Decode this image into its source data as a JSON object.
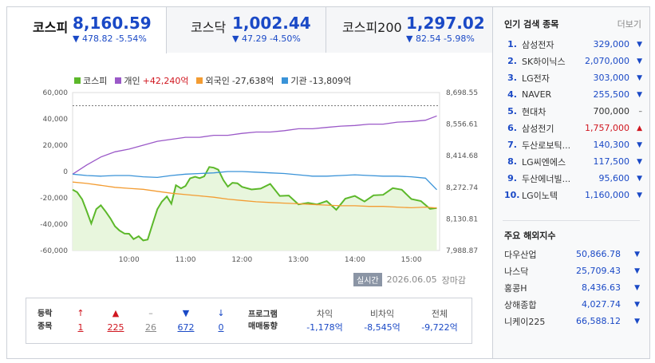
{
  "tabs": [
    {
      "name": "코스피",
      "value": "8,160.59",
      "change": "▼ 478.82 -5.54%"
    },
    {
      "name": "코스닥",
      "value": "1,002.44",
      "change": "▼ 47.29 -4.50%"
    },
    {
      "name": "코스피200",
      "value": "1,297.02",
      "change": "▼ 82.54 -5.98%"
    }
  ],
  "legend": [
    {
      "name": "코스피",
      "value": "",
      "color": "#5cb82a"
    },
    {
      "name": "개인",
      "value": "+42,240억",
      "color": "#9b59c8"
    },
    {
      "name": "외국인",
      "value": "-27,638억",
      "color": "#f39c32"
    },
    {
      "name": "기관",
      "value": "-13,809억",
      "color": "#3a93d8"
    }
  ],
  "info": {
    "badge": "실시간",
    "date": "2026.06.05",
    "status": "장마감"
  },
  "breadth": {
    "header1": "등락",
    "header2": "종목",
    "items": [
      {
        "arrow": "↑",
        "count": "1",
        "color": "red"
      },
      {
        "arrow": "▲",
        "count": "225",
        "color": "red"
      },
      {
        "arrow": "–",
        "count": "26",
        "color": "gray"
      },
      {
        "arrow": "▼",
        "count": "672",
        "color": "blue"
      },
      {
        "arrow": "↓",
        "count": "0",
        "color": "blue"
      }
    ]
  },
  "program": {
    "header1": "프로그램",
    "header2": "매매동향",
    "items": [
      {
        "label": "차익",
        "value": "-1,178억"
      },
      {
        "label": "비차익",
        "value": "-8,545억"
      },
      {
        "label": "전체",
        "value": "-9,722억"
      }
    ]
  },
  "popular": {
    "title": "인기 검색 종목",
    "more": "더보기",
    "items": [
      {
        "rank": "1.",
        "name": "삼성전자",
        "price": "329,000",
        "dir": "down"
      },
      {
        "rank": "2.",
        "name": "SK하이닉스",
        "price": "2,070,000",
        "dir": "down"
      },
      {
        "rank": "3.",
        "name": "LG전자",
        "price": "303,000",
        "dir": "down"
      },
      {
        "rank": "4.",
        "name": "NAVER",
        "price": "255,500",
        "dir": "down"
      },
      {
        "rank": "5.",
        "name": "현대차",
        "price": "700,000",
        "dir": "flat"
      },
      {
        "rank": "6.",
        "name": "삼성전기",
        "price": "1,757,000",
        "dir": "up"
      },
      {
        "rank": "7.",
        "name": "두산로보틱...",
        "price": "140,300",
        "dir": "down"
      },
      {
        "rank": "8.",
        "name": "LG씨엔에스",
        "price": "117,500",
        "dir": "down"
      },
      {
        "rank": "9.",
        "name": "두산에너빌...",
        "price": "95,600",
        "dir": "down"
      },
      {
        "rank": "10.",
        "name": "LG이노텍",
        "price": "1,160,000",
        "dir": "down"
      }
    ]
  },
  "overseas": {
    "title": "주요 해외지수",
    "items": [
      {
        "name": "다우산업",
        "value": "50,866.78"
      },
      {
        "name": "나스닥",
        "value": "25,709.43"
      },
      {
        "name": "홍콩H",
        "value": "8,436.63"
      },
      {
        "name": "상해종합",
        "value": "4,027.74"
      },
      {
        "name": "니케이225",
        "value": "66,588.12"
      }
    ]
  },
  "colors": {
    "up": "#d0161f",
    "down": "#1a49c6",
    "kospi": "#5cb82a",
    "individual": "#9b59c8",
    "foreign": "#f39c32",
    "institution": "#3a93d8"
  },
  "chart_data": {
    "type": "line",
    "x_ticks": [
      "10:00",
      "11:00",
      "12:00",
      "13:00",
      "14:00",
      "15:00"
    ],
    "y_left_ticks": [
      "60,000",
      "40,000",
      "20,000",
      "0",
      "-20,000",
      "-40,000",
      "-60,000"
    ],
    "y_right_ticks": [
      "8,698.55",
      "8,556.61",
      "8,414.68",
      "8,272.74",
      "8,130.81",
      "7,988.87"
    ],
    "ylim_left": [
      -60000,
      60000
    ],
    "ylim_right": [
      7988.87,
      8698.55
    ],
    "xlim": [
      9.0,
      15.5
    ],
    "prev_close_right": 8639.41,
    "series": [
      {
        "name": "코스피",
        "axis": "right",
        "x": [
          9.0,
          9.08,
          9.17,
          9.25,
          9.33,
          9.42,
          9.5,
          9.58,
          9.67,
          9.75,
          9.83,
          9.92,
          10.0,
          10.08,
          10.17,
          10.25,
          10.33,
          10.42,
          10.5,
          10.58,
          10.67,
          10.75,
          10.83,
          10.92,
          11.0,
          11.08,
          11.17,
          11.25,
          11.33,
          11.42,
          11.5,
          11.58,
          11.67,
          11.75,
          11.83,
          11.92,
          12.0,
          12.17,
          12.33,
          12.5,
          12.67,
          12.83,
          13.0,
          13.17,
          13.33,
          13.5,
          13.67,
          13.83,
          14.0,
          14.17,
          14.33,
          14.5,
          14.67,
          14.83,
          15.0,
          15.17,
          15.33,
          15.45
        ],
        "y": [
          8262,
          8251,
          8219,
          8166,
          8110,
          8175,
          8192,
          8166,
          8133,
          8098,
          8079,
          8065,
          8064,
          8040,
          8053,
          8034,
          8038,
          8111,
          8174,
          8208,
          8232,
          8199,
          8282,
          8268,
          8279,
          8313,
          8320,
          8314,
          8322,
          8364,
          8361,
          8352,
          8305,
          8276,
          8293,
          8291,
          8275,
          8263,
          8267,
          8288,
          8234,
          8236,
          8196,
          8203,
          8196,
          8211,
          8172,
          8222,
          8234,
          8209,
          8237,
          8239,
          8269,
          8262,
          8220,
          8211,
          8176,
          8180
        ]
      },
      {
        "name": "개인",
        "axis": "left",
        "x": [
          9.0,
          9.25,
          9.5,
          9.75,
          10.0,
          10.25,
          10.5,
          10.75,
          11.0,
          11.25,
          11.5,
          11.75,
          12.0,
          12.25,
          12.5,
          12.75,
          13.0,
          13.25,
          13.5,
          13.75,
          14.0,
          14.25,
          14.5,
          14.75,
          15.0,
          15.25,
          15.45
        ],
        "y": [
          -2000,
          5000,
          11000,
          15000,
          17000,
          20000,
          23000,
          24500,
          26000,
          26000,
          27500,
          27500,
          29000,
          30000,
          30000,
          31000,
          32500,
          32500,
          33500,
          34500,
          35000,
          36000,
          36000,
          37500,
          38000,
          39000,
          42240
        ]
      },
      {
        "name": "외국인",
        "axis": "left",
        "x": [
          9.0,
          9.25,
          9.5,
          9.75,
          10.0,
          10.25,
          10.5,
          10.75,
          11.0,
          11.25,
          11.5,
          11.75,
          12.0,
          12.25,
          12.5,
          12.75,
          13.0,
          13.25,
          13.5,
          13.75,
          14.0,
          14.25,
          14.5,
          14.75,
          15.0,
          15.25,
          15.45
        ],
        "y": [
          -8000,
          -9000,
          -10500,
          -12000,
          -12800,
          -13500,
          -15000,
          -16500,
          -17500,
          -18500,
          -19500,
          -21000,
          -22000,
          -23000,
          -23500,
          -24000,
          -24500,
          -25000,
          -25500,
          -26000,
          -26000,
          -26500,
          -26500,
          -27000,
          -27500,
          -27000,
          -27638
        ]
      },
      {
        "name": "기관",
        "axis": "left",
        "x": [
          9.0,
          9.25,
          9.5,
          9.75,
          10.0,
          10.25,
          10.5,
          10.75,
          11.0,
          11.25,
          11.5,
          11.75,
          12.0,
          12.25,
          12.5,
          12.75,
          13.0,
          13.25,
          13.5,
          13.75,
          14.0,
          14.25,
          14.5,
          14.75,
          15.0,
          15.25,
          15.45
        ],
        "y": [
          -2000,
          -3000,
          -3500,
          -3000,
          -3000,
          -4000,
          -4500,
          -3000,
          -2000,
          -1500,
          -1000,
          0,
          0,
          -500,
          -1000,
          -1500,
          -2500,
          -3500,
          -3500,
          -3000,
          -2500,
          -3000,
          -3500,
          -3500,
          -4000,
          -5000,
          -13809
        ]
      }
    ]
  }
}
